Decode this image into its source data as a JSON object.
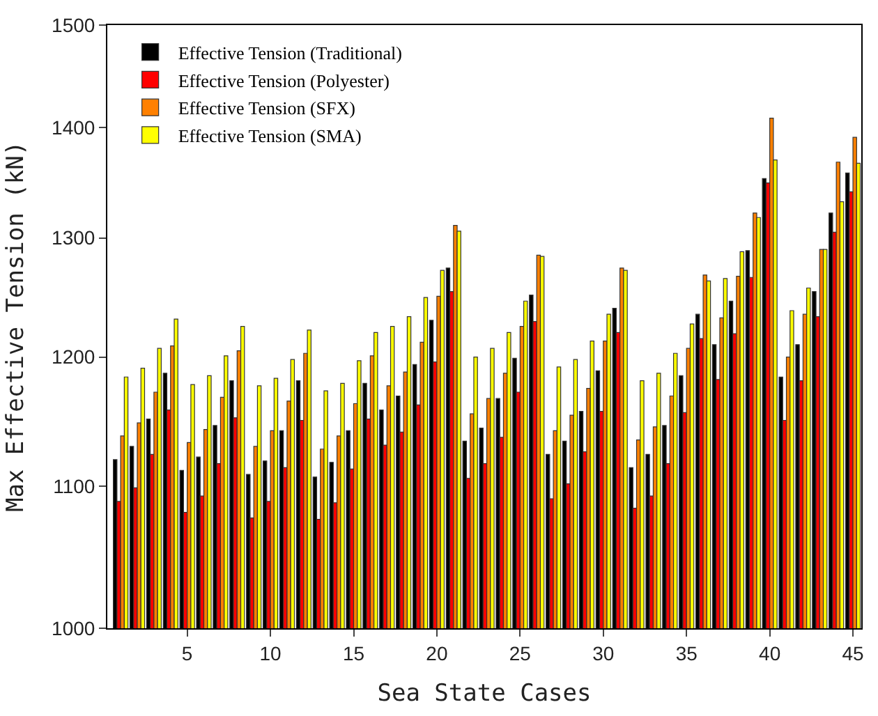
{
  "chart_data": {
    "type": "bar",
    "xlabel": "Sea State Cases",
    "ylabel": "Max Effective Tension (kN)",
    "x": [
      1,
      2,
      3,
      4,
      5,
      6,
      7,
      8,
      9,
      10,
      11,
      12,
      13,
      14,
      15,
      16,
      17,
      18,
      19,
      20,
      21,
      22,
      23,
      24,
      25,
      26,
      27,
      28,
      29,
      30,
      31,
      32,
      33,
      34,
      35,
      36,
      37,
      38,
      39,
      40,
      41,
      42,
      43,
      44,
      45
    ],
    "series": [
      {
        "name": "Effective Tension (Traditional)",
        "color": "#000000",
        "values": [
          1120,
          1130,
          1151,
          1187,
          1112,
          1122,
          1146,
          1181,
          1109,
          1119,
          1142,
          1181,
          1107,
          1118,
          1142,
          1179,
          1158,
          1169,
          1194,
          1230,
          1274,
          1134,
          1144,
          1167,
          1199,
          1251,
          1124,
          1134,
          1157,
          1189,
          1240,
          1114,
          1124,
          1146,
          1185,
          1235,
          1210,
          1246,
          1289,
          1353,
          1184,
          1210,
          1254,
          1322,
          1358
        ]
      },
      {
        "name": "Effective Tension (Polyester)",
        "color": "#ff0000",
        "values": [
          1089,
          1099,
          1124,
          1158,
          1081,
          1093,
          1117,
          1152,
          1077,
          1089,
          1114,
          1150,
          1076,
          1088,
          1113,
          1151,
          1131,
          1141,
          1162,
          1196,
          1254,
          1106,
          1117,
          1137,
          1172,
          1229,
          1091,
          1102,
          1126,
          1157,
          1220,
          1084,
          1093,
          1117,
          1156,
          1215,
          1182,
          1219,
          1266,
          1349,
          1150,
          1181,
          1233,
          1305,
          1341
        ]
      },
      {
        "name": "Effective Tension (SFX)",
        "color": "#ff8000",
        "values": [
          1138,
          1148,
          1172,
          1209,
          1133,
          1143,
          1168,
          1205,
          1130,
          1142,
          1165,
          1203,
          1128,
          1138,
          1163,
          1201,
          1177,
          1188,
          1212,
          1250,
          1311,
          1155,
          1167,
          1187,
          1225,
          1285,
          1142,
          1154,
          1175,
          1213,
          1274,
          1135,
          1145,
          1169,
          1207,
          1268,
          1232,
          1267,
          1322,
          1409,
          1200,
          1235,
          1290,
          1368,
          1391
        ]
      },
      {
        "name": "Effective Tension (SMA)",
        "color": "#ffff00",
        "values": [
          1184,
          1191,
          1207,
          1231,
          1178,
          1185,
          1201,
          1225,
          1177,
          1183,
          1198,
          1222,
          1173,
          1179,
          1197,
          1220,
          1225,
          1233,
          1249,
          1272,
          1306,
          1200,
          1207,
          1220,
          1246,
          1284,
          1192,
          1198,
          1213,
          1235,
          1272,
          1181,
          1187,
          1203,
          1227,
          1263,
          1265,
          1288,
          1318,
          1370,
          1238,
          1257,
          1290,
          1332,
          1367
        ]
      }
    ],
    "log": "y",
    "ylim": [
      1000,
      1500
    ],
    "yticks": [
      1000,
      1100,
      1200,
      1300,
      1400,
      1500
    ],
    "xlim": [
      0.2,
      45.5
    ],
    "xticks": [
      5,
      10,
      15,
      20,
      25,
      30,
      35,
      40,
      45
    ],
    "legend": "top left"
  }
}
